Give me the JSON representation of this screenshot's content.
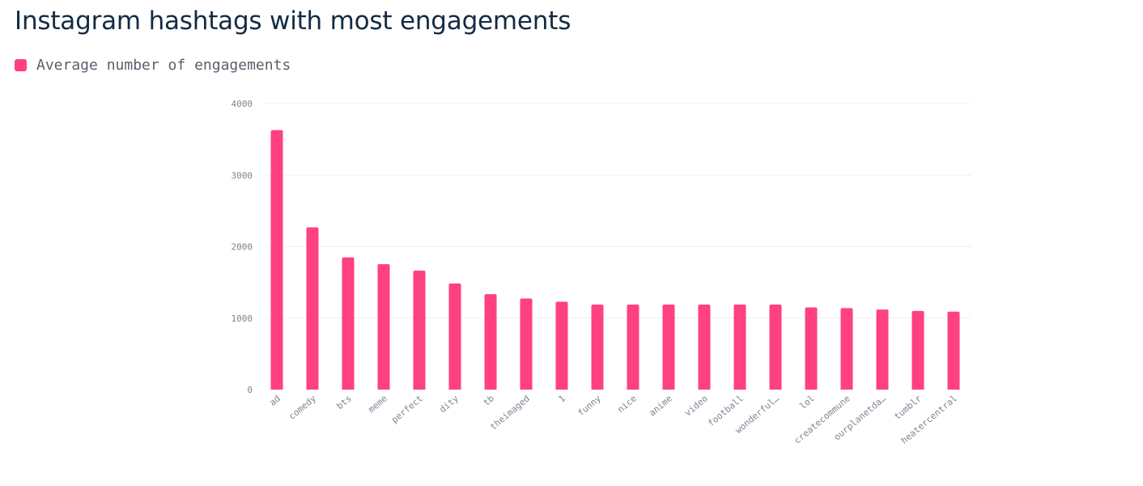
{
  "title": "Instagram hashtags with most engagements",
  "legend": {
    "label": "Average number of engagements",
    "color": "#ff4081"
  },
  "chart_data": {
    "type": "bar",
    "title": "Instagram hashtags with most engagements",
    "xlabel": "",
    "ylabel": "",
    "ylim": [
      0,
      4000
    ],
    "yticks": [
      0,
      1000,
      2000,
      3000,
      4000
    ],
    "grid": true,
    "legend_position": "top-left",
    "categories": [
      "ad",
      "comedy",
      "bts",
      "meme",
      "perfect",
      "dity",
      "tb",
      "theimaged",
      "1",
      "funny",
      "nice",
      "anime",
      "video",
      "football",
      "wonderful…",
      "lol",
      "createcommune",
      "ourplanetda…",
      "tumblr",
      "heatercentral"
    ],
    "series": [
      {
        "name": "Average number of engagements",
        "color": "#ff4081",
        "values": [
          3630,
          2270,
          1850,
          1755,
          1665,
          1485,
          1335,
          1275,
          1230,
          1190,
          1190,
          1190,
          1190,
          1190,
          1190,
          1150,
          1140,
          1120,
          1100,
          1090
        ]
      }
    ]
  }
}
